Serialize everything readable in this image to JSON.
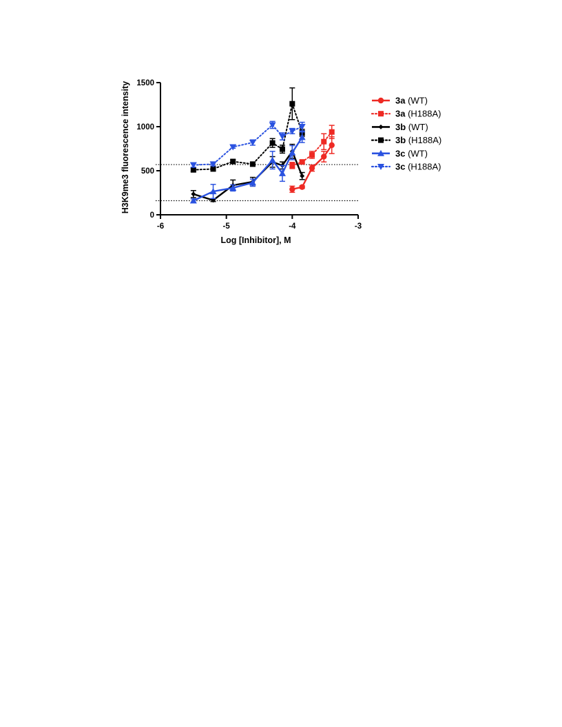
{
  "chart_data": {
    "type": "line",
    "title": "",
    "xlabel": "Log [Inhibitor], M",
    "ylabel": "H3K9me3 fluorescence intensity",
    "xlim": [
      -6,
      -3
    ],
    "ylim": [
      0,
      1500
    ],
    "xticks": [
      -6,
      -5,
      -4,
      -3
    ],
    "yticks": [
      0,
      500,
      1000,
      1500
    ],
    "xtick_labels": [
      "-6",
      "-5",
      "-4",
      "-3"
    ],
    "ytick_labels": [
      "0",
      "500",
      "1000",
      "1500"
    ],
    "grid": false,
    "legend_position": "right",
    "reference_lines": [
      570,
      160
    ],
    "series": [
      {
        "name_bold": "3a",
        "name_rest": " (WT)",
        "color": "#ee2a24",
        "dash": "solid",
        "marker": "circle",
        "points": [
          {
            "x": -4.0,
            "y": 290,
            "err": 35
          },
          {
            "x": -3.85,
            "y": 315,
            "err": 15
          },
          {
            "x": -3.7,
            "y": 530,
            "err": 35
          },
          {
            "x": -3.52,
            "y": 660,
            "err": 60
          },
          {
            "x": -3.4,
            "y": 790,
            "err": 95
          }
        ]
      },
      {
        "name_bold": "3a",
        "name_rest": " (H188A)",
        "color": "#ee2a24",
        "dash": "dotted",
        "marker": "square",
        "points": [
          {
            "x": -4.0,
            "y": 560,
            "err": 35
          },
          {
            "x": -3.85,
            "y": 600,
            "err": 15
          },
          {
            "x": -3.7,
            "y": 680,
            "err": 40
          },
          {
            "x": -3.52,
            "y": 830,
            "err": 90
          },
          {
            "x": -3.4,
            "y": 940,
            "err": 75
          }
        ]
      },
      {
        "name_bold": "3b",
        "name_rest": " (WT)",
        "color": "#000000",
        "dash": "solid",
        "marker": "diamond",
        "points": [
          {
            "x": -5.5,
            "y": 235,
            "err": 40
          },
          {
            "x": -5.2,
            "y": 165,
            "err": 15
          },
          {
            "x": -4.9,
            "y": 335,
            "err": 60
          },
          {
            "x": -4.6,
            "y": 375,
            "err": 50
          },
          {
            "x": -4.3,
            "y": 600,
            "err": 60
          },
          {
            "x": -4.15,
            "y": 560,
            "err": 40
          },
          {
            "x": -4.0,
            "y": 720,
            "err": 80
          },
          {
            "x": -3.85,
            "y": 440,
            "err": 40
          }
        ]
      },
      {
        "name_bold": "3b",
        "name_rest": " (H188A)",
        "color": "#000000",
        "dash": "dotted",
        "marker": "square",
        "points": [
          {
            "x": -5.5,
            "y": 510,
            "err": 20
          },
          {
            "x": -5.2,
            "y": 520,
            "err": 20
          },
          {
            "x": -4.9,
            "y": 605,
            "err": 20
          },
          {
            "x": -4.6,
            "y": 575,
            "err": 20
          },
          {
            "x": -4.3,
            "y": 815,
            "err": 50
          },
          {
            "x": -4.15,
            "y": 745,
            "err": 45
          },
          {
            "x": -4.0,
            "y": 1260,
            "err": 180
          },
          {
            "x": -3.85,
            "y": 930,
            "err": 40
          }
        ]
      },
      {
        "name_bold": "3c",
        "name_rest": " (WT)",
        "color": "#2a52e0",
        "dash": "solid",
        "marker": "triangle-up",
        "points": [
          {
            "x": -5.5,
            "y": 160,
            "err": 20
          },
          {
            "x": -5.2,
            "y": 265,
            "err": 80
          },
          {
            "x": -4.9,
            "y": 305,
            "err": 35
          },
          {
            "x": -4.6,
            "y": 365,
            "err": 40
          },
          {
            "x": -4.3,
            "y": 620,
            "err": 100
          },
          {
            "x": -4.15,
            "y": 470,
            "err": 90
          },
          {
            "x": -4.0,
            "y": 705,
            "err": 80
          },
          {
            "x": -3.85,
            "y": 880,
            "err": 60
          }
        ]
      },
      {
        "name_bold": "3c",
        "name_rest": " (H188A)",
        "color": "#2a52e0",
        "dash": "dotted",
        "marker": "triangle-down",
        "points": [
          {
            "x": -5.5,
            "y": 565,
            "err": 25
          },
          {
            "x": -5.2,
            "y": 575,
            "err": 20
          },
          {
            "x": -4.9,
            "y": 770,
            "err": 15
          },
          {
            "x": -4.6,
            "y": 820,
            "err": 30
          },
          {
            "x": -4.3,
            "y": 1020,
            "err": 40
          },
          {
            "x": -4.15,
            "y": 890,
            "err": 40
          },
          {
            "x": -4.0,
            "y": 950,
            "err": 30
          },
          {
            "x": -3.85,
            "y": 1000,
            "err": 50
          }
        ]
      }
    ]
  }
}
